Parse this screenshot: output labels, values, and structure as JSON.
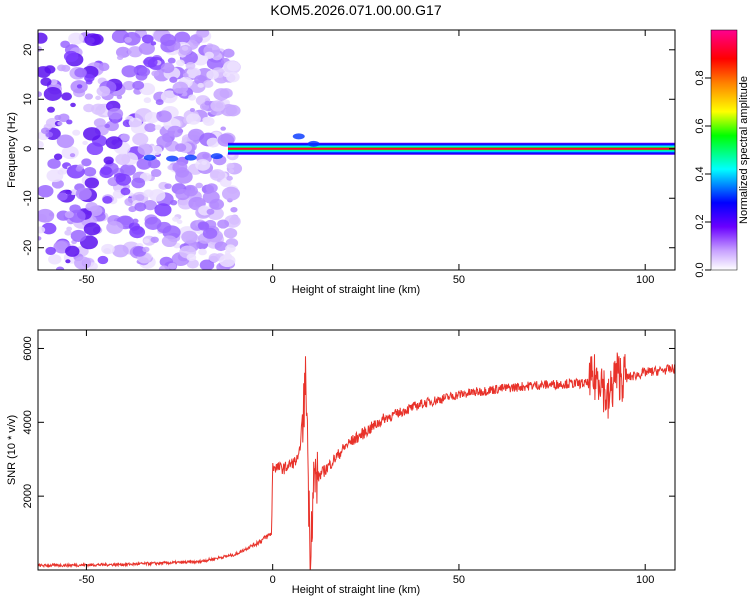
{
  "chart_data": [
    {
      "type": "heatmap",
      "title": "KOM5.2026.071.00.00.G17",
      "xlabel": "Height of straight line (km)",
      "ylabel": "Frequency (Hz)",
      "xlim": [
        -63,
        108
      ],
      "ylim": [
        -24.5,
        24
      ],
      "x_ticks": [
        -50,
        0,
        50,
        100
      ],
      "y_ticks": [
        -20,
        -10,
        0,
        10,
        20
      ],
      "colorbar": {
        "label": "Normalized spectral amplitude",
        "range": [
          0,
          1
        ],
        "ticks": [
          0.0,
          0.2,
          0.4,
          0.6,
          0.8
        ],
        "colormap": [
          "#ffffff",
          "#8a2be2",
          "#0000ff",
          "#00ffff",
          "#00ff00",
          "#ffff00",
          "#ff8000",
          "#ff0000",
          "#ff0080"
        ]
      },
      "description_values": {
        "noise_region_x": [
          -63,
          -10
        ],
        "signal_line_start_x": -12,
        "signal_line_frequency": 0,
        "signal_peak_amplitude": 0.95
      },
      "grid": false
    },
    {
      "type": "line",
      "xlabel": "Height of straight line (km)",
      "ylabel": "SNR (10 * v/v)",
      "xlim": [
        -63,
        108
      ],
      "ylim": [
        0,
        6500
      ],
      "x_ticks": [
        -50,
        0,
        50,
        100
      ],
      "y_ticks": [
        2000,
        4000,
        6000
      ],
      "line_color": "#e8322a",
      "key_points": {
        "x": [
          -63,
          -40,
          -20,
          -10,
          -3,
          -0.3,
          0,
          3,
          7,
          9,
          10,
          11,
          14,
          20,
          30,
          40,
          50,
          60,
          70,
          80,
          85,
          88,
          90,
          92,
          95,
          100,
          108
        ],
        "y": [
          120,
          150,
          220,
          420,
          800,
          1000,
          2800,
          2750,
          3000,
          5200,
          500,
          2400,
          2700,
          3400,
          4100,
          4500,
          4750,
          4900,
          5000,
          5050,
          5050,
          5300,
          4500,
          5300,
          5200,
          5350,
          5450
        ]
      },
      "grid": false
    }
  ]
}
